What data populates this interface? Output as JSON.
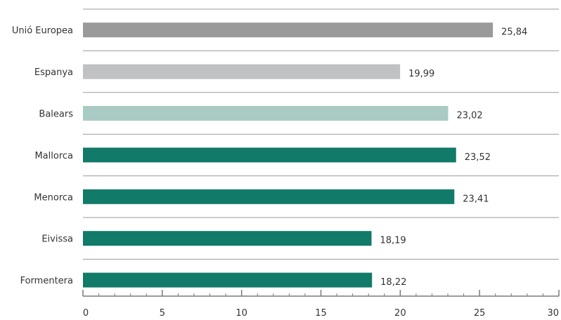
{
  "chart_data": {
    "type": "bar",
    "orientation": "horizontal",
    "title": "",
    "xlabel": "",
    "ylabel": "",
    "categories": [
      "Unió Europea",
      "Espanya",
      "Balears",
      "Mallorca",
      "Menorca",
      "Eivissa",
      "Formentera"
    ],
    "values": [
      25.84,
      19.99,
      23.02,
      23.52,
      23.41,
      18.19,
      18.22
    ],
    "value_labels": [
      "25,84",
      "19,99",
      "23,02",
      "23,52",
      "23,41",
      "18,19",
      "18,22"
    ],
    "bar_colors": [
      "#9a9a9b",
      "#c0c1c3",
      "#a9cbc3",
      "#117a69",
      "#117a69",
      "#117a69",
      "#117a69"
    ],
    "xlim": [
      0,
      30
    ],
    "xticks": [
      0,
      5,
      10,
      15,
      20,
      25,
      30
    ],
    "xtick_labels": [
      "0",
      "5",
      "10",
      "15",
      "20",
      "25",
      "30"
    ],
    "grid": "horizontal separators between categories",
    "legend": "none"
  }
}
